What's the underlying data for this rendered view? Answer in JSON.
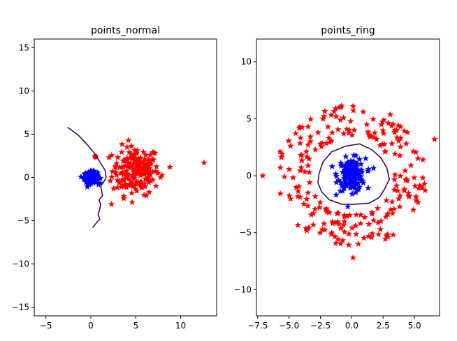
{
  "chart_data": [
    {
      "type": "scatter",
      "title": "points_normal",
      "xlabel": "",
      "ylabel": "",
      "xlim": [
        -6.3,
        14.0
      ],
      "ylim": [
        -16.0,
        16.0
      ],
      "xticks": [
        -5,
        0,
        5,
        10
      ],
      "xtick_labels": [
        "−5",
        "0",
        "5",
        "10"
      ],
      "yticks": [
        -15,
        -10,
        -5,
        0,
        5,
        10,
        15
      ],
      "ytick_labels": [
        "−15",
        "−10",
        "−5",
        "0",
        "5",
        "10",
        "15"
      ],
      "grid": false,
      "legend": "none",
      "clusters": [
        {
          "color": "#ff0000",
          "marker": "star",
          "center": [
            5.0,
            0.8
          ],
          "spread": [
            1.3,
            1.4
          ],
          "count": 190
        },
        {
          "color": "#0000ff",
          "marker": "star",
          "center": [
            0.0,
            0.0
          ],
          "spread": [
            0.38,
            0.32
          ],
          "count": 130
        }
      ],
      "extra_points": [
        {
          "x": 12.6,
          "y": 1.7,
          "color": "#ff0000",
          "marker": "star"
        },
        {
          "x": 8.8,
          "y": 1.2,
          "color": "#ff0000",
          "marker": "star"
        },
        {
          "x": 2.3,
          "y": -3.1,
          "color": "#ff0000",
          "marker": "star"
        },
        {
          "x": 0.5,
          "y": 2.4,
          "color": "#ff0000",
          "marker": "circle"
        }
      ],
      "boundary": {
        "color": "#3b0a5c",
        "points": [
          [
            -2.6,
            5.8
          ],
          [
            -1.4,
            4.9
          ],
          [
            -0.4,
            3.8
          ],
          [
            0.4,
            2.8
          ],
          [
            1.0,
            1.8
          ],
          [
            1.6,
            0.8
          ],
          [
            1.7,
            0.0
          ],
          [
            1.5,
            -0.4
          ],
          [
            1.1,
            -1.0
          ],
          [
            1.2,
            -1.5
          ],
          [
            1.3,
            -2.1
          ],
          [
            0.9,
            -2.6
          ],
          [
            1.1,
            -3.1
          ],
          [
            1.0,
            -3.6
          ],
          [
            0.8,
            -4.3
          ],
          [
            1.0,
            -4.8
          ],
          [
            0.5,
            -5.4
          ],
          [
            0.2,
            -5.8
          ]
        ]
      }
    },
    {
      "type": "scatter",
      "title": "points_ring",
      "xlabel": "",
      "ylabel": "",
      "xlim": [
        -7.6,
        7.0
      ],
      "ylim": [
        -12.3,
        12.0
      ],
      "xticks": [
        -7.5,
        -5.0,
        -2.5,
        0.0,
        2.5,
        5.0
      ],
      "xtick_labels": [
        "−7.5",
        "−5.0",
        "−2.5",
        "0.0",
        "2.5",
        "5.0"
      ],
      "yticks": [
        -10,
        -5,
        0,
        5,
        10
      ],
      "ytick_labels": [
        "−10",
        "−5",
        "0",
        "5",
        "10"
      ],
      "grid": false,
      "legend": "none",
      "clusters": [
        {
          "color": "#ff0000",
          "marker": "star",
          "shape": "ring",
          "center": [
            0.0,
            0.0
          ],
          "radius_range": [
            3.4,
            6.2
          ],
          "count": 230
        },
        {
          "color": "#0000ff",
          "marker": "star",
          "center": [
            0.0,
            0.1
          ],
          "spread": [
            0.55,
            0.7
          ],
          "count": 150
        }
      ],
      "extra_points": [
        {
          "x": -7.1,
          "y": 0.0,
          "color": "#ff0000",
          "marker": "star"
        },
        {
          "x": 6.6,
          "y": 3.2,
          "color": "#ff0000",
          "marker": "star"
        },
        {
          "x": 0.1,
          "y": -7.2,
          "color": "#ff0000",
          "marker": "star"
        },
        {
          "x": 0.1,
          "y": 6.1,
          "color": "#ff0000",
          "marker": "star"
        }
      ],
      "boundary": {
        "color": "#3b0a5c",
        "points": [
          [
            -2.6,
            0.2
          ],
          [
            -2.3,
            1.2
          ],
          [
            -1.6,
            2.1
          ],
          [
            -0.5,
            2.6
          ],
          [
            0.6,
            2.8
          ],
          [
            1.6,
            2.3
          ],
          [
            2.3,
            1.6
          ],
          [
            2.8,
            0.7
          ],
          [
            3.0,
            -0.3
          ],
          [
            2.6,
            -1.2
          ],
          [
            2.2,
            -1.9
          ],
          [
            1.4,
            -2.4
          ],
          [
            0.2,
            -2.5
          ],
          [
            -0.8,
            -2.5
          ],
          [
            -1.8,
            -2.1
          ],
          [
            -2.4,
            -1.4
          ],
          [
            -2.7,
            -0.6
          ],
          [
            -2.6,
            0.2
          ]
        ]
      }
    }
  ]
}
